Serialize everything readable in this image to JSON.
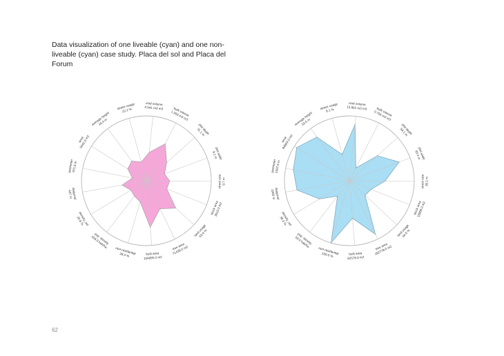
{
  "page": {
    "title": "Data visualization of one liveable (cyan) and one non-liveable (cyan) case study. Placa del sol and Placa del Forum",
    "page_number": "62"
  },
  "chart_data": [
    {
      "type": "radar",
      "grid": false,
      "fill_color": "#f6a6d9",
      "stroke_color": "#9a9a9a",
      "categories": [
        {
          "name": "street size",
          "value": "9.7 m",
          "r": 0.36
        },
        {
          "name": "block area",
          "value": "3513.0 m2",
          "r": 0.34
        },
        {
          "name": "land usage",
          "value": "63.6 %",
          "r": 0.62
        },
        {
          "name": "tree area",
          "value": "71436.0 m2",
          "r": 0.48
        },
        {
          "name": "built area",
          "value": "104895.0 m2",
          "r": 0.72
        },
        {
          "name": "non-residential",
          "value": "28.5 %",
          "r": 0.34
        },
        {
          "name": "pop. density",
          "value": "456.0 hab/ha",
          "r": 0.3
        },
        {
          "name": "density_vol",
          "value": "20.6 %",
          "r": 0.28
        },
        {
          "name": "diagonal",
          "value": "437 m",
          "r": 0.38
        },
        {
          "name": "perimeter",
          "value": "971.6 m",
          "r": 0.22
        },
        {
          "name": "area",
          "value": "5442.0 m2",
          "r": 0.34
        },
        {
          "name": "average height",
          "value": "16.4 m",
          "r": 0.38
        },
        {
          "name": "space usage",
          "value": "22.2 %",
          "r": 0.3
        },
        {
          "name": "void volume",
          "value": "4.541 m3 m3",
          "r": 0.44
        },
        {
          "name": "built volume",
          "value": "1.269 m3 m3",
          "r": 0.64
        },
        {
          "name": "plot depth",
          "value": "31.1 m",
          "r": 0.42
        },
        {
          "name": "plot width",
          "value": "9.1 m",
          "r": 0.3
        }
      ]
    },
    {
      "type": "radar",
      "grid": false,
      "fill_color": "#a9def4",
      "stroke_color": "#6e98ab",
      "categories": [
        {
          "name": "street size",
          "value": "35.1 m",
          "r": 0.55
        },
        {
          "name": "block area",
          "value": "18868.0 m2",
          "r": 0.36
        },
        {
          "name": "land usage",
          "value": "34.5 %",
          "r": 0.33
        },
        {
          "name": "tree area",
          "value": "162778.0 m2",
          "r": 0.92
        },
        {
          "name": "built area",
          "value": "62578.8 m2",
          "r": 0.58
        },
        {
          "name": "non-residential",
          "value": "100.0 %",
          "r": 1.0
        },
        {
          "name": "pop. density",
          "value": "59.0 hab/ha",
          "r": 0.3
        },
        {
          "name": "density_vol",
          "value": "36.3 %",
          "r": 0.54
        },
        {
          "name": "diagonal",
          "value": "1956 m",
          "r": 0.82
        },
        {
          "name": "perimeter",
          "value": "1597.6 m",
          "r": 0.88
        },
        {
          "name": "area",
          "value": "84864.0 m2",
          "r": 0.96
        },
        {
          "name": "average height",
          "value": "33.5 m",
          "r": 0.84
        },
        {
          "name": "space usage",
          "value": "8.1 %",
          "r": 0.42
        },
        {
          "name": "void volume",
          "value": "13.962 m3 m3",
          "r": 0.88
        },
        {
          "name": "built volume",
          "value": "0.756 m3 m3",
          "r": 0.22
        },
        {
          "name": "plot depth",
          "value": "54.1 m",
          "r": 0.58
        },
        {
          "name": "plot width",
          "value": "83.4 m",
          "r": 0.82
        }
      ]
    }
  ]
}
